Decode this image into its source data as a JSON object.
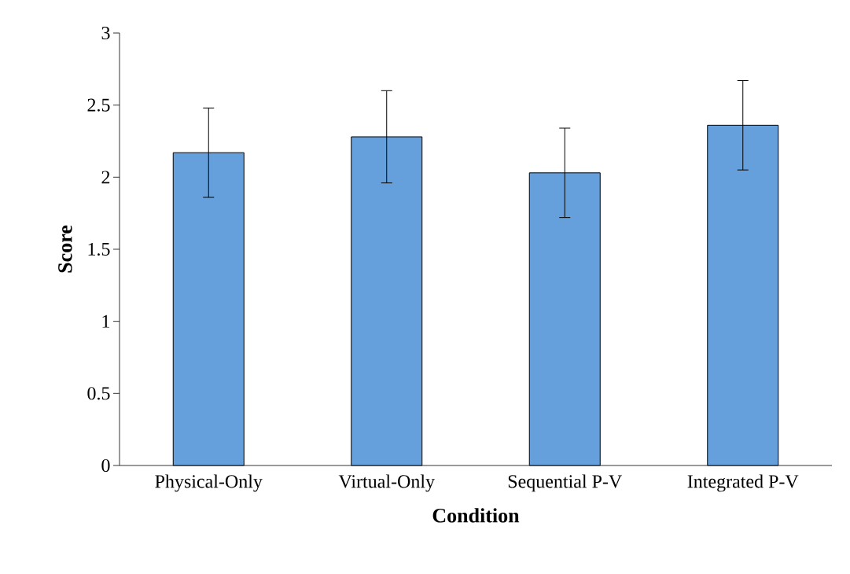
{
  "chart_data": {
    "type": "bar",
    "xlabel": "Condition",
    "ylabel": "Score",
    "categories": [
      "Physical-Only",
      "Virtual-Only",
      "Sequential P-V",
      "Integrated P-V"
    ],
    "values": [
      2.17,
      2.28,
      2.03,
      2.36
    ],
    "errors": [
      0.31,
      0.32,
      0.31,
      0.31
    ],
    "color": "#659fdc",
    "ylim": [
      0,
      3
    ],
    "yticks": [
      0,
      0.5,
      1,
      1.5,
      2,
      2.5,
      3
    ]
  }
}
